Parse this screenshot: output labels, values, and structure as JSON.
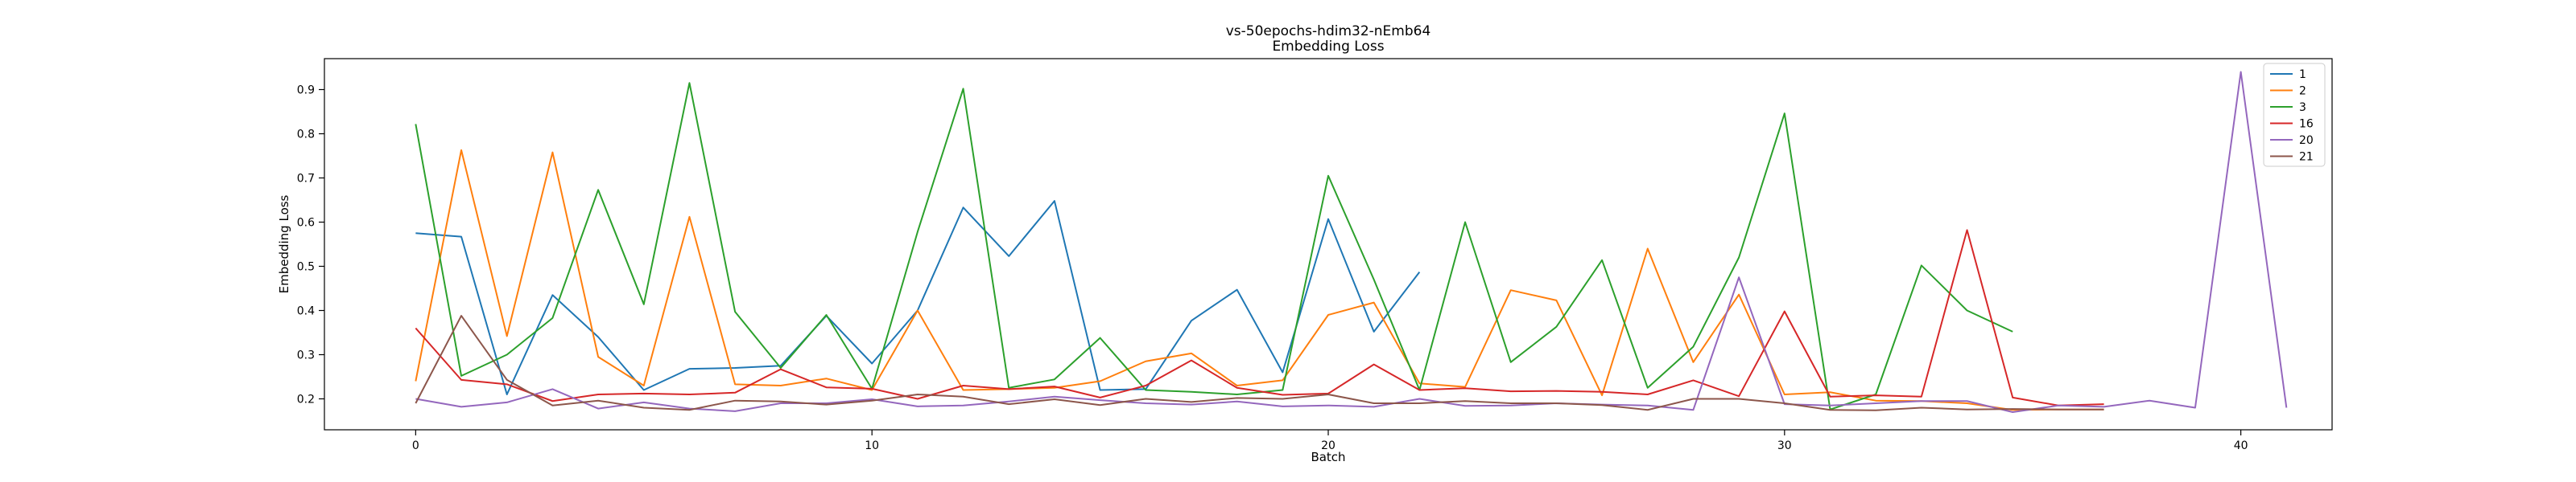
{
  "chart_data": {
    "type": "line",
    "title": "vs-50epochs-hdim32-nEmb64",
    "subtitle": "Embedding Loss",
    "xlabel": "Batch",
    "ylabel": "Embedding Loss",
    "xlim": [
      -2,
      42
    ],
    "ylim": [
      0.13,
      0.97
    ],
    "xticks": [
      0,
      10,
      20,
      30,
      40
    ],
    "yticks": [
      0.2,
      0.3,
      0.4,
      0.5,
      0.6,
      0.7,
      0.8,
      0.9
    ],
    "grid": false,
    "legend_position": "top-right",
    "series": [
      {
        "name": "1",
        "color": "#1f77b4",
        "values": [
          0.575,
          0.567,
          0.21,
          0.435,
          0.34,
          0.22,
          0.268,
          0.27,
          0.275,
          0.388,
          0.28,
          0.4,
          0.633,
          0.523,
          0.648,
          0.22,
          0.222,
          0.377,
          0.447,
          0.26,
          0.607,
          0.352,
          0.487
        ]
      },
      {
        "name": "2",
        "color": "#ff7f0e",
        "values": [
          0.24,
          0.763,
          0.342,
          0.758,
          0.295,
          0.23,
          0.612,
          0.233,
          0.23,
          0.246,
          0.22,
          0.4,
          0.22,
          0.222,
          0.225,
          0.24,
          0.285,
          0.303,
          0.23,
          0.242,
          0.39,
          0.418,
          0.235,
          0.227,
          0.446,
          0.423,
          0.208,
          0.54,
          0.283,
          0.436,
          0.21,
          0.215,
          0.196,
          0.195,
          0.19,
          0.175,
          0.176,
          0.176
        ]
      },
      {
        "name": "3",
        "color": "#2ca02c",
        "values": [
          0.822,
          0.252,
          0.3,
          0.383,
          0.673,
          0.414,
          0.915,
          0.397,
          0.27,
          0.39,
          0.223,
          0.578,
          0.902,
          0.225,
          0.244,
          0.338,
          0.22,
          0.216,
          0.21,
          0.22,
          0.705,
          0.47,
          0.22,
          0.6,
          0.283,
          0.363,
          0.514,
          0.225,
          0.318,
          0.52,
          0.846,
          0.176,
          0.21,
          0.502,
          0.4,
          0.352
        ]
      },
      {
        "name": "16",
        "color": "#d62728",
        "values": [
          0.36,
          0.243,
          0.233,
          0.195,
          0.21,
          0.212,
          0.21,
          0.214,
          0.267,
          0.226,
          0.223,
          0.2,
          0.23,
          0.222,
          0.228,
          0.203,
          0.23,
          0.287,
          0.225,
          0.209,
          0.212,
          0.278,
          0.22,
          0.224,
          0.217,
          0.218,
          0.216,
          0.21,
          0.242,
          0.206,
          0.398,
          0.205,
          0.208,
          0.205,
          0.582,
          0.203,
          0.185,
          0.188
        ]
      },
      {
        "name": "20",
        "color": "#9467bd",
        "values": [
          0.2,
          0.182,
          0.192,
          0.222,
          0.178,
          0.192,
          0.178,
          0.172,
          0.19,
          0.19,
          0.199,
          0.183,
          0.185,
          0.194,
          0.205,
          0.197,
          0.19,
          0.187,
          0.194,
          0.183,
          0.185,
          0.182,
          0.2,
          0.184,
          0.185,
          0.19,
          0.187,
          0.185,
          0.175,
          0.475,
          0.188,
          0.185,
          0.19,
          0.195,
          0.195,
          0.17,
          0.185,
          0.182,
          0.196,
          0.18,
          0.94,
          0.18
        ]
      },
      {
        "name": "21",
        "color": "#8c564b",
        "values": [
          0.19,
          0.388,
          0.243,
          0.185,
          0.196,
          0.18,
          0.175,
          0.196,
          0.194,
          0.187,
          0.196,
          0.21,
          0.205,
          0.188,
          0.199,
          0.186,
          0.2,
          0.193,
          0.202,
          0.2,
          0.21,
          0.19,
          0.19,
          0.195,
          0.19,
          0.19,
          0.186,
          0.175,
          0.2,
          0.2,
          0.19,
          0.175,
          0.174,
          0.18,
          0.176,
          0.177,
          0.176,
          0.176
        ]
      }
    ]
  }
}
